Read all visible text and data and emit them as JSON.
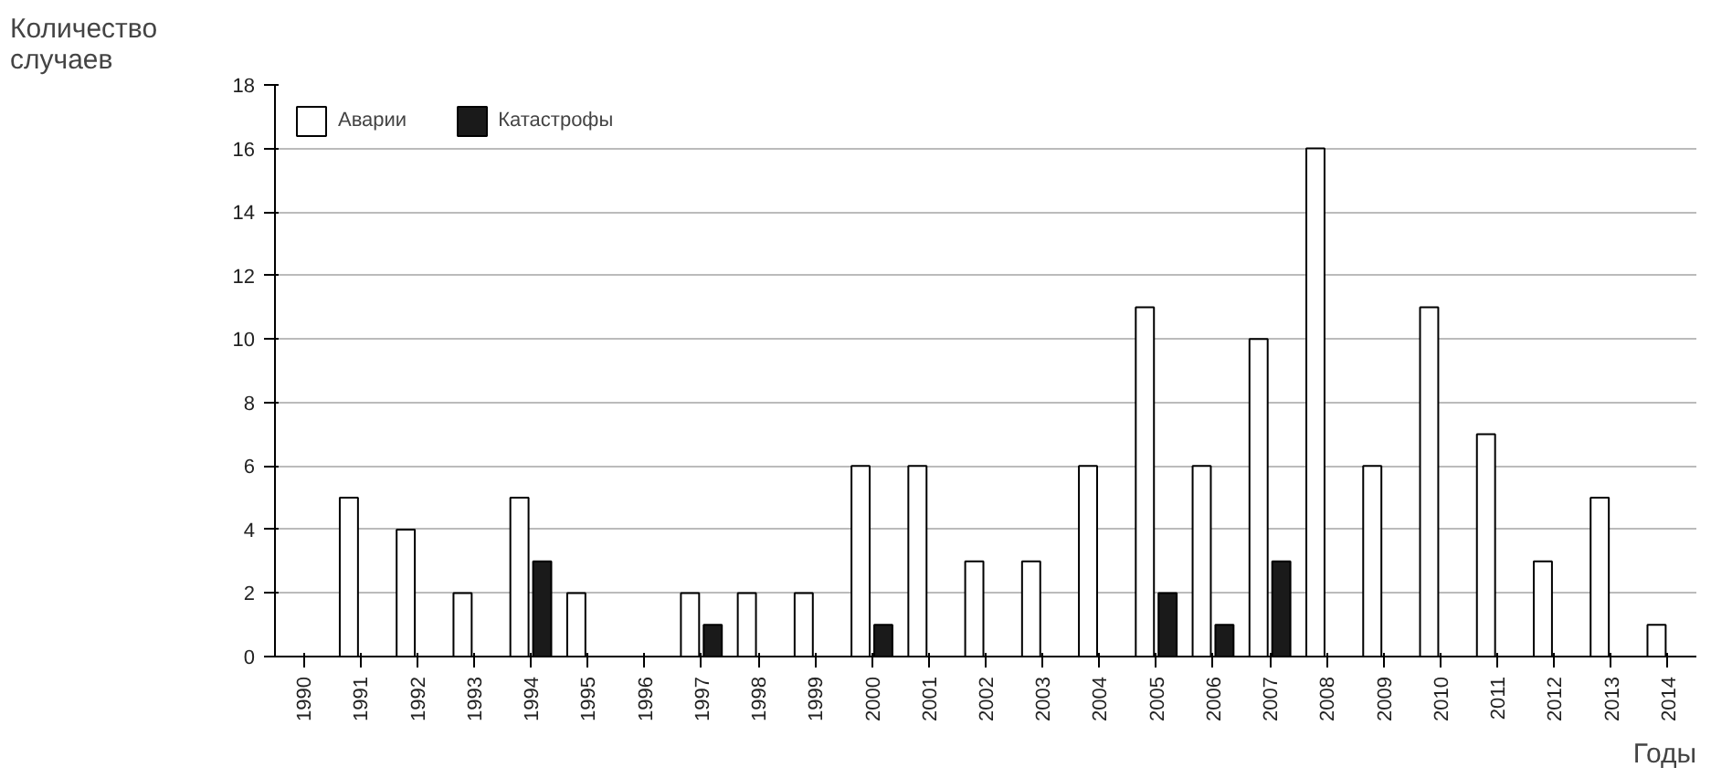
{
  "chart_data": {
    "type": "bar",
    "ylabel": "Количество\nслучаев",
    "xlabel": "Годы",
    "categories": [
      "1990",
      "1991",
      "1992",
      "1993",
      "1994",
      "1995",
      "1996",
      "1997",
      "1998",
      "1999",
      "2000",
      "2001",
      "2002",
      "2003",
      "2004",
      "2005",
      "2006",
      "2007",
      "2008",
      "2009",
      "2010",
      "2011",
      "2012",
      "2013",
      "2014"
    ],
    "series": [
      {
        "name": "Аварии",
        "color": "#ffffff",
        "values": [
          0,
          5,
          4,
          2,
          5,
          2,
          0,
          2,
          2,
          2,
          6,
          6,
          3,
          3,
          6,
          11,
          6,
          10,
          16,
          6,
          11,
          7,
          3,
          5,
          1
        ]
      },
      {
        "name": "Катастрофы",
        "color": "#1a1a1a",
        "values": [
          0,
          0,
          0,
          0,
          3,
          0,
          0,
          1,
          0,
          0,
          1,
          0,
          0,
          0,
          0,
          2,
          1,
          3,
          0,
          0,
          0,
          0,
          0,
          0,
          0
        ]
      }
    ],
    "ylim": [
      0,
      18
    ],
    "yticks": [
      0,
      2,
      4,
      6,
      8,
      10,
      12,
      14,
      16,
      18
    ],
    "grid": "y",
    "legend": "top left"
  }
}
